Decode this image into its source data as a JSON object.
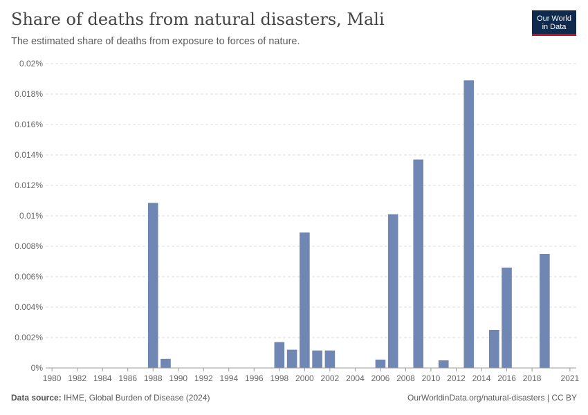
{
  "header": {
    "title": "Share of deaths from natural disasters, Mali",
    "subtitle": "The estimated share of deaths from exposure to forces of nature."
  },
  "logo": {
    "line1": "Our World",
    "line2": "in Data"
  },
  "footer": {
    "source_label": "Data source:",
    "source_text": "IHME, Global Burden of Disease (2024)",
    "url_text": "OurWorldinData.org/natural-disasters | CC BY"
  },
  "colors": {
    "bar": "#6f87b2",
    "grid": "#dddddd",
    "logo_bg": "#0f2a4d",
    "logo_accent": "#c8102e"
  },
  "chart_data": {
    "type": "bar",
    "title": "Share of deaths from natural disasters, Mali",
    "xlabel": "",
    "ylabel": "",
    "ylim": [
      0,
      0.02
    ],
    "y_ticks": [
      0,
      0.002,
      0.004,
      0.006,
      0.008,
      0.01,
      0.012,
      0.014,
      0.016,
      0.018,
      0.02
    ],
    "y_tick_labels": [
      "0%",
      "0.002%",
      "0.004%",
      "0.006%",
      "0.008%",
      "0.01%",
      "0.012%",
      "0.014%",
      "0.016%",
      "0.018%",
      "0.02%"
    ],
    "x_range": [
      1980,
      2021
    ],
    "x_tick_labels": [
      "1980",
      "1982",
      "1984",
      "1986",
      "1988",
      "1990",
      "1992",
      "1994",
      "1996",
      "1998",
      "2000",
      "2002",
      "2004",
      "2006",
      "2008",
      "2010",
      "2012",
      "2014",
      "2016",
      "2018",
      "2021"
    ],
    "unit": "%",
    "grid": true,
    "series": [
      {
        "name": "Mali",
        "points": [
          {
            "x": 1988,
            "y": 0.01085
          },
          {
            "x": 1989,
            "y": 0.0006
          },
          {
            "x": 1998,
            "y": 0.0017
          },
          {
            "x": 1999,
            "y": 0.0012
          },
          {
            "x": 2000,
            "y": 0.0089
          },
          {
            "x": 2001,
            "y": 0.00115
          },
          {
            "x": 2002,
            "y": 0.00115
          },
          {
            "x": 2006,
            "y": 0.00055
          },
          {
            "x": 2007,
            "y": 0.0101
          },
          {
            "x": 2009,
            "y": 0.0137
          },
          {
            "x": 2011,
            "y": 0.0005
          },
          {
            "x": 2013,
            "y": 0.0189
          },
          {
            "x": 2015,
            "y": 0.0025
          },
          {
            "x": 2016,
            "y": 0.0066
          },
          {
            "x": 2019,
            "y": 0.0075
          }
        ]
      }
    ]
  }
}
